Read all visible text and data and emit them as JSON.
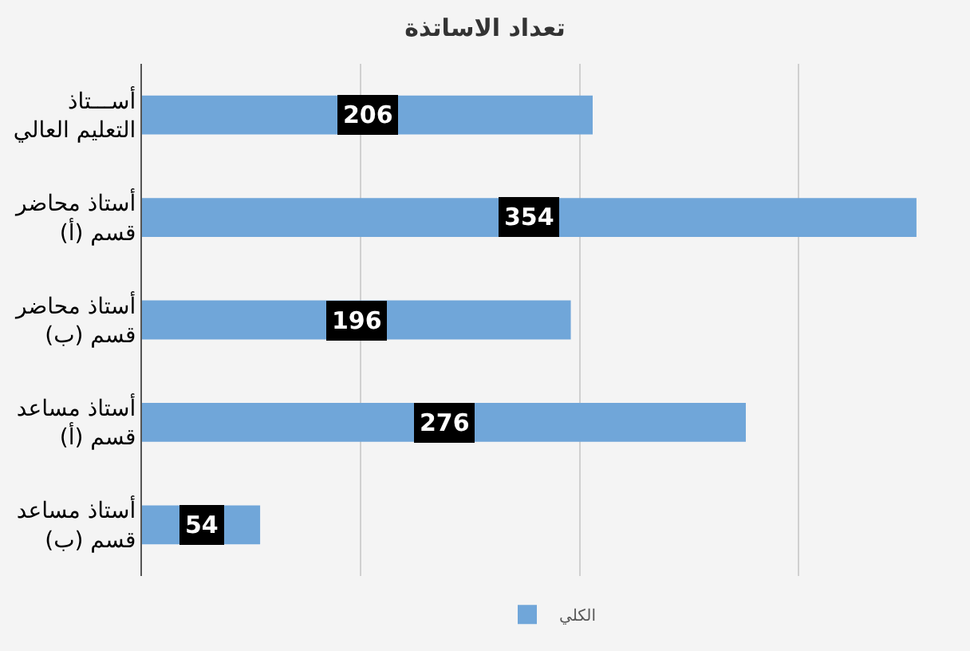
{
  "chart_data": {
    "type": "bar",
    "orientation": "horizontal",
    "title": "تعداد الاساتذة",
    "categories": [
      "أســـتاذ\nالتعليم العالي",
      "أستاذ محاضر\nقسم (أ)",
      "أستاذ محاضر\nقسم (ب)",
      "أستاذ مساعد\nقسم (أ)",
      "أستاذ مساعد\nقسم (ب)"
    ],
    "series": [
      {
        "name": "الكلي",
        "color": "#70a6d9",
        "values": [
          206,
          354,
          196,
          276,
          54
        ]
      }
    ],
    "tick_labels": "y",
    "grid": "x",
    "legend": "bottom",
    "data_labels": true
  }
}
